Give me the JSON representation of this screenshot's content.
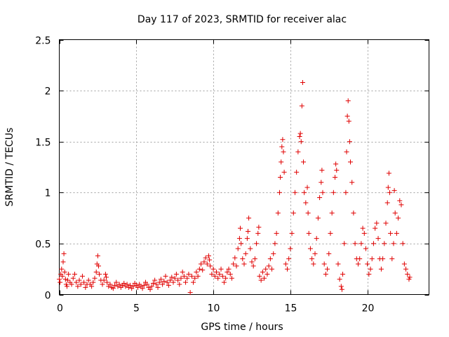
{
  "chart_data": {
    "type": "scatter",
    "title": "Day 117 of 2023, SRMTID for receiver alac",
    "xlabel": "GPS time / hours",
    "ylabel": "SRMTID / TECUs",
    "xlim": [
      0,
      24
    ],
    "ylim": [
      0,
      2.5
    ],
    "xticks": [
      0,
      5,
      10,
      15,
      20
    ],
    "xtick_labels": [
      "0",
      "5",
      "10",
      "15",
      "20"
    ],
    "yticks": [
      0,
      0.5,
      1,
      1.5,
      2,
      2.5
    ],
    "ytick_labels": [
      "0",
      "0.5",
      "1",
      "1.5",
      "2",
      "2.5"
    ],
    "grid": true,
    "marker": "+",
    "series": [
      {
        "name": "SRMTID",
        "color": "#e00000",
        "points": [
          [
            0.0,
            0.15
          ],
          [
            0.05,
            0.12
          ],
          [
            0.1,
            0.2
          ],
          [
            0.15,
            0.25
          ],
          [
            0.2,
            0.18
          ],
          [
            0.25,
            0.32
          ],
          [
            0.3,
            0.4
          ],
          [
            0.35,
            0.22
          ],
          [
            0.4,
            0.15
          ],
          [
            0.45,
            0.1
          ],
          [
            0.5,
            0.08
          ],
          [
            0.55,
            0.14
          ],
          [
            0.6,
            0.2
          ],
          [
            0.7,
            0.12
          ],
          [
            0.8,
            0.1
          ],
          [
            0.9,
            0.16
          ],
          [
            1.0,
            0.2
          ],
          [
            1.1,
            0.12
          ],
          [
            1.2,
            0.08
          ],
          [
            1.3,
            0.14
          ],
          [
            1.4,
            0.1
          ],
          [
            1.5,
            0.18
          ],
          [
            1.6,
            0.12
          ],
          [
            1.7,
            0.07
          ],
          [
            1.8,
            0.1
          ],
          [
            1.9,
            0.14
          ],
          [
            2.0,
            0.1
          ],
          [
            2.1,
            0.08
          ],
          [
            2.2,
            0.12
          ],
          [
            2.3,
            0.16
          ],
          [
            2.4,
            0.22
          ],
          [
            2.45,
            0.3
          ],
          [
            2.5,
            0.38
          ],
          [
            2.55,
            0.28
          ],
          [
            2.6,
            0.2
          ],
          [
            2.7,
            0.14
          ],
          [
            2.8,
            0.1
          ],
          [
            2.9,
            0.14
          ],
          [
            3.0,
            0.2
          ],
          [
            3.05,
            0.17
          ],
          [
            3.1,
            0.12
          ],
          [
            3.2,
            0.08
          ],
          [
            3.3,
            0.1
          ],
          [
            3.4,
            0.07
          ],
          [
            3.5,
            0.06
          ],
          [
            3.6,
            0.09
          ],
          [
            3.7,
            0.12
          ],
          [
            3.8,
            0.08
          ],
          [
            3.9,
            0.1
          ],
          [
            4.0,
            0.07
          ],
          [
            4.1,
            0.09
          ],
          [
            4.2,
            0.11
          ],
          [
            4.3,
            0.08
          ],
          [
            4.4,
            0.1
          ],
          [
            4.5,
            0.07
          ],
          [
            4.6,
            0.09
          ],
          [
            4.7,
            0.06
          ],
          [
            4.8,
            0.08
          ],
          [
            4.9,
            0.11
          ],
          [
            5.0,
            0.09
          ],
          [
            5.1,
            0.07
          ],
          [
            5.2,
            0.1
          ],
          [
            5.3,
            0.08
          ],
          [
            5.4,
            0.06
          ],
          [
            5.5,
            0.09
          ],
          [
            5.6,
            0.12
          ],
          [
            5.7,
            0.1
          ],
          [
            5.8,
            0.07
          ],
          [
            5.9,
            0.05
          ],
          [
            6.0,
            0.08
          ],
          [
            6.1,
            0.11
          ],
          [
            6.2,
            0.14
          ],
          [
            6.3,
            0.1
          ],
          [
            6.4,
            0.07
          ],
          [
            6.5,
            0.12
          ],
          [
            6.6,
            0.15
          ],
          [
            6.7,
            0.1
          ],
          [
            6.8,
            0.13
          ],
          [
            6.9,
            0.18
          ],
          [
            7.0,
            0.12
          ],
          [
            7.1,
            0.09
          ],
          [
            7.2,
            0.14
          ],
          [
            7.3,
            0.17
          ],
          [
            7.4,
            0.12
          ],
          [
            7.5,
            0.16
          ],
          [
            7.6,
            0.2
          ],
          [
            7.7,
            0.14
          ],
          [
            7.8,
            0.1
          ],
          [
            7.9,
            0.16
          ],
          [
            8.0,
            0.22
          ],
          [
            8.1,
            0.18
          ],
          [
            8.2,
            0.12
          ],
          [
            8.3,
            0.16
          ],
          [
            8.4,
            0.2
          ],
          [
            8.5,
            0.02
          ],
          [
            8.6,
            0.18
          ],
          [
            8.7,
            0.12
          ],
          [
            8.8,
            0.16
          ],
          [
            8.9,
            0.22
          ],
          [
            9.0,
            0.18
          ],
          [
            9.1,
            0.25
          ],
          [
            9.2,
            0.3
          ],
          [
            9.3,
            0.24
          ],
          [
            9.4,
            0.32
          ],
          [
            9.5,
            0.36
          ],
          [
            9.6,
            0.3
          ],
          [
            9.7,
            0.38
          ],
          [
            9.75,
            0.34
          ],
          [
            9.8,
            0.28
          ],
          [
            9.9,
            0.2
          ],
          [
            10.0,
            0.25
          ],
          [
            10.1,
            0.18
          ],
          [
            10.2,
            0.22
          ],
          [
            10.3,
            0.16
          ],
          [
            10.4,
            0.2
          ],
          [
            10.5,
            0.25
          ],
          [
            10.6,
            0.18
          ],
          [
            10.7,
            0.12
          ],
          [
            10.8,
            0.16
          ],
          [
            10.9,
            0.22
          ],
          [
            11.0,
            0.25
          ],
          [
            11.1,
            0.2
          ],
          [
            11.2,
            0.16
          ],
          [
            11.3,
            0.3
          ],
          [
            11.4,
            0.36
          ],
          [
            11.5,
            0.28
          ],
          [
            11.6,
            0.45
          ],
          [
            11.7,
            0.55
          ],
          [
            11.75,
            0.65
          ],
          [
            11.8,
            0.5
          ],
          [
            11.9,
            0.35
          ],
          [
            12.0,
            0.3
          ],
          [
            12.1,
            0.4
          ],
          [
            12.2,
            0.55
          ],
          [
            12.25,
            0.62
          ],
          [
            12.3,
            0.75
          ],
          [
            12.4,
            0.45
          ],
          [
            12.5,
            0.32
          ],
          [
            12.6,
            0.28
          ],
          [
            12.7,
            0.35
          ],
          [
            12.8,
            0.5
          ],
          [
            12.9,
            0.6
          ],
          [
            12.95,
            0.66
          ],
          [
            13.0,
            0.18
          ],
          [
            13.1,
            0.14
          ],
          [
            13.2,
            0.22
          ],
          [
            13.3,
            0.16
          ],
          [
            13.4,
            0.25
          ],
          [
            13.5,
            0.2
          ],
          [
            13.6,
            0.28
          ],
          [
            13.7,
            0.35
          ],
          [
            13.8,
            0.25
          ],
          [
            13.9,
            0.4
          ],
          [
            14.0,
            0.5
          ],
          [
            14.1,
            0.6
          ],
          [
            14.2,
            0.8
          ],
          [
            14.3,
            1.0
          ],
          [
            14.35,
            1.15
          ],
          [
            14.4,
            1.3
          ],
          [
            14.45,
            1.45
          ],
          [
            14.5,
            1.52
          ],
          [
            14.55,
            1.4
          ],
          [
            14.6,
            1.2
          ],
          [
            14.7,
            0.3
          ],
          [
            14.8,
            0.25
          ],
          [
            14.9,
            0.35
          ],
          [
            15.0,
            0.45
          ],
          [
            15.1,
            0.6
          ],
          [
            15.2,
            0.8
          ],
          [
            15.3,
            1.0
          ],
          [
            15.4,
            1.2
          ],
          [
            15.5,
            1.4
          ],
          [
            15.6,
            1.55
          ],
          [
            15.65,
            1.58
          ],
          [
            15.7,
            1.5
          ],
          [
            15.75,
            1.85
          ],
          [
            15.8,
            2.08
          ],
          [
            15.85,
            1.3
          ],
          [
            15.9,
            1.0
          ],
          [
            16.0,
            0.9
          ],
          [
            16.1,
            1.05
          ],
          [
            16.15,
            0.8
          ],
          [
            16.2,
            0.6
          ],
          [
            16.3,
            0.45
          ],
          [
            16.4,
            0.35
          ],
          [
            16.5,
            0.3
          ],
          [
            16.6,
            0.4
          ],
          [
            16.7,
            0.55
          ],
          [
            16.8,
            0.75
          ],
          [
            16.9,
            0.95
          ],
          [
            17.0,
            1.1
          ],
          [
            17.05,
            1.22
          ],
          [
            17.1,
            1.0
          ],
          [
            17.2,
            0.3
          ],
          [
            17.3,
            0.2
          ],
          [
            17.4,
            0.25
          ],
          [
            17.5,
            0.4
          ],
          [
            17.6,
            0.6
          ],
          [
            17.7,
            0.8
          ],
          [
            17.8,
            1.0
          ],
          [
            17.9,
            1.15
          ],
          [
            17.95,
            1.28
          ],
          [
            18.0,
            1.22
          ],
          [
            18.1,
            0.3
          ],
          [
            18.2,
            0.15
          ],
          [
            18.3,
            0.08
          ],
          [
            18.35,
            0.05
          ],
          [
            18.4,
            0.2
          ],
          [
            18.5,
            0.5
          ],
          [
            18.6,
            1.0
          ],
          [
            18.65,
            1.4
          ],
          [
            18.7,
            1.75
          ],
          [
            18.75,
            1.9
          ],
          [
            18.8,
            1.7
          ],
          [
            18.85,
            1.5
          ],
          [
            18.9,
            1.3
          ],
          [
            19.0,
            1.1
          ],
          [
            19.1,
            0.8
          ],
          [
            19.2,
            0.5
          ],
          [
            19.3,
            0.35
          ],
          [
            19.4,
            0.3
          ],
          [
            19.5,
            0.35
          ],
          [
            19.6,
            0.5
          ],
          [
            19.7,
            0.65
          ],
          [
            19.8,
            0.6
          ],
          [
            19.9,
            0.45
          ],
          [
            20.0,
            0.3
          ],
          [
            20.1,
            0.2
          ],
          [
            20.2,
            0.25
          ],
          [
            20.3,
            0.35
          ],
          [
            20.4,
            0.5
          ],
          [
            20.5,
            0.65
          ],
          [
            20.6,
            0.7
          ],
          [
            20.7,
            0.55
          ],
          [
            20.8,
            0.35
          ],
          [
            20.9,
            0.25
          ],
          [
            21.0,
            0.35
          ],
          [
            21.1,
            0.5
          ],
          [
            21.2,
            0.7
          ],
          [
            21.3,
            0.9
          ],
          [
            21.35,
            1.05
          ],
          [
            21.4,
            1.19
          ],
          [
            21.45,
            1.0
          ],
          [
            21.5,
            0.6
          ],
          [
            21.6,
            0.35
          ],
          [
            21.7,
            0.5
          ],
          [
            21.75,
            1.02
          ],
          [
            21.8,
            0.8
          ],
          [
            21.9,
            0.6
          ],
          [
            22.0,
            0.75
          ],
          [
            22.1,
            0.92
          ],
          [
            22.2,
            0.88
          ],
          [
            22.3,
            0.5
          ],
          [
            22.4,
            0.3
          ],
          [
            22.5,
            0.25
          ],
          [
            22.6,
            0.2
          ],
          [
            22.7,
            0.15
          ],
          [
            22.75,
            0.17
          ]
        ]
      }
    ]
  }
}
